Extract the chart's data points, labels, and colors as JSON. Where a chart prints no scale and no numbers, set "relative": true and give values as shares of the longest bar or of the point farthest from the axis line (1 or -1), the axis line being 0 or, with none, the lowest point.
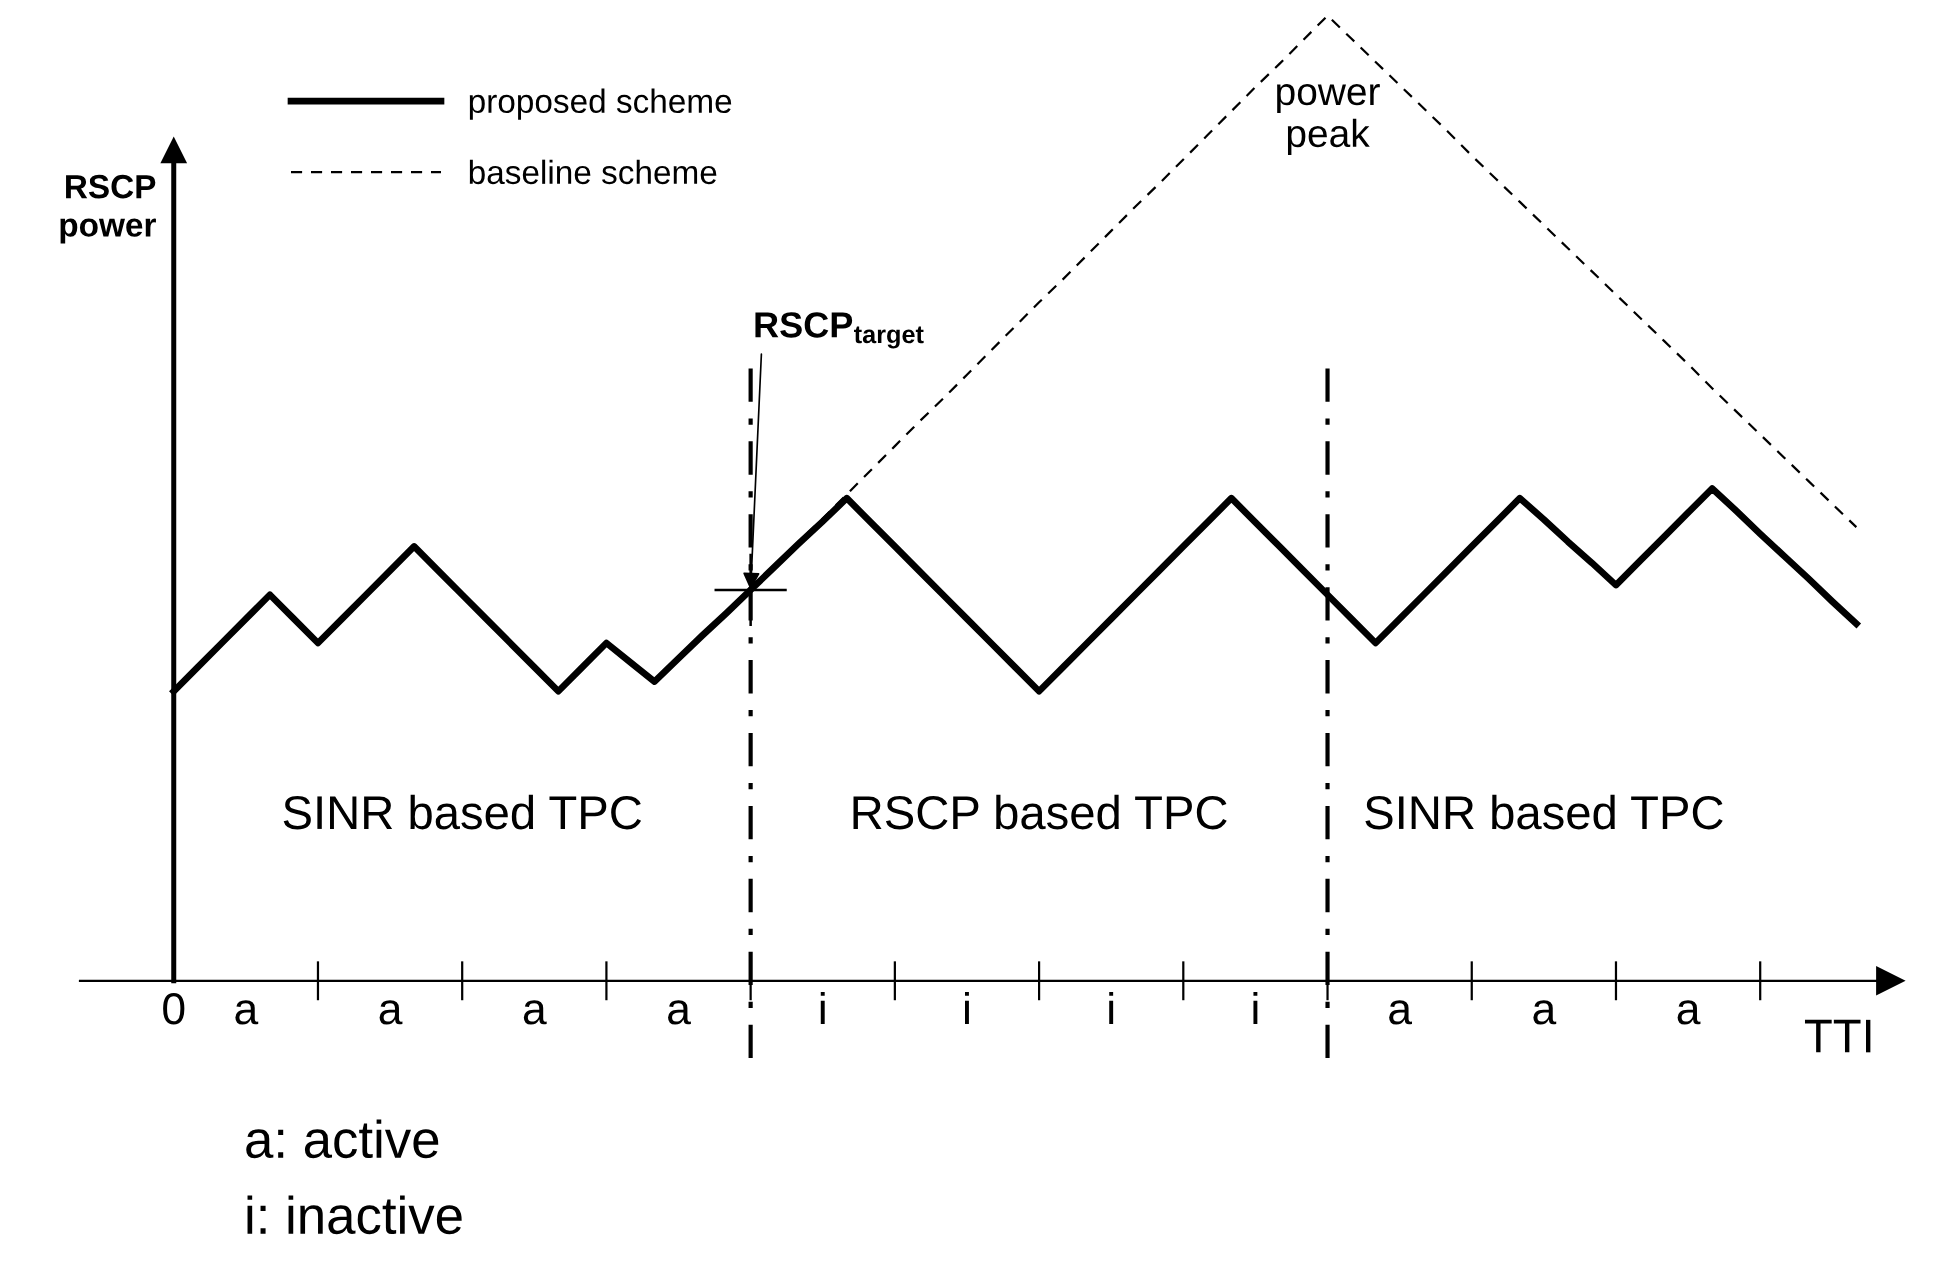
{
  "chart_data": {
    "type": "line",
    "relative": true,
    "xlabel": "TTI",
    "ylabel": "RSCP\npower",
    "legend": "top left",
    "marker": "none",
    "categories": [
      "0",
      null,
      null,
      "a",
      null,
      null,
      null,
      null,
      null,
      "a",
      null,
      null,
      null,
      null,
      null,
      "a",
      null,
      null,
      null,
      null,
      null,
      "a",
      null,
      null,
      null,
      null,
      null,
      "i",
      null,
      null,
      null,
      null,
      null,
      "i",
      null,
      null,
      null,
      null,
      null,
      "i",
      null,
      null,
      null,
      null,
      null,
      "i",
      null,
      null,
      null,
      null,
      null,
      "a",
      null,
      null,
      null,
      null,
      null,
      "a",
      null,
      null,
      null,
      null,
      null,
      "a",
      null,
      null,
      null,
      null,
      null,
      null,
      null,
      null
    ],
    "series": [
      {
        "name": "proposed scheme",
        "color": "#000000",
        "line_style": "solid",
        "values": [
          0.3,
          0.325,
          0.35,
          0.375,
          0.4,
          0.375,
          0.35,
          0.375,
          0.4,
          0.425,
          0.45,
          0.425,
          0.4,
          0.375,
          0.35,
          0.325,
          0.3,
          0.325,
          0.35,
          0.33,
          0.31,
          0.334,
          0.358,
          0.381,
          0.405,
          0.429,
          0.453,
          0.476,
          0.5,
          0.475,
          0.45,
          0.425,
          0.4,
          0.375,
          0.35,
          0.325,
          0.3,
          0.325,
          0.35,
          0.375,
          0.4,
          0.425,
          0.45,
          0.475,
          0.5,
          0.475,
          0.45,
          0.425,
          0.4,
          0.375,
          0.35,
          0.375,
          0.4,
          0.425,
          0.45,
          0.475,
          0.5,
          0.478,
          0.455,
          0.433,
          0.41,
          0.435,
          0.46,
          0.485,
          0.51,
          0.487,
          0.463,
          0.44,
          0.417,
          0.393,
          0.37,
          null
        ]
      },
      {
        "name": "baseline scheme",
        "color": "#000000",
        "line_style": "dashed",
        "values": [
          null,
          null,
          null,
          null,
          null,
          null,
          null,
          null,
          null,
          null,
          null,
          null,
          null,
          null,
          null,
          null,
          null,
          null,
          null,
          null,
          null,
          null,
          null,
          null,
          0.405,
          0.43,
          0.455,
          0.479,
          0.504,
          0.529,
          0.554,
          0.579,
          0.603,
          0.628,
          0.653,
          0.678,
          0.703,
          0.727,
          0.752,
          0.777,
          0.802,
          0.826,
          0.851,
          0.876,
          0.901,
          0.926,
          0.95,
          0.975,
          1.0,
          0.976,
          0.952,
          0.928,
          0.904,
          0.88,
          0.855,
          0.831,
          0.807,
          0.783,
          0.759,
          0.735,
          0.711,
          0.687,
          0.663,
          0.639,
          0.614,
          0.59,
          0.566,
          0.542,
          0.518,
          0.494,
          0.47,
          null
        ]
      }
    ],
    "annotations": [
      "RSCP$_{target}$",
      {
        "text": "power\npeak",
        "y": 1.0
      },
      "SINR based TPC",
      "RSCP based TPC",
      "SINR based TPC",
      "a: active",
      "i: inactive"
    ]
  }
}
